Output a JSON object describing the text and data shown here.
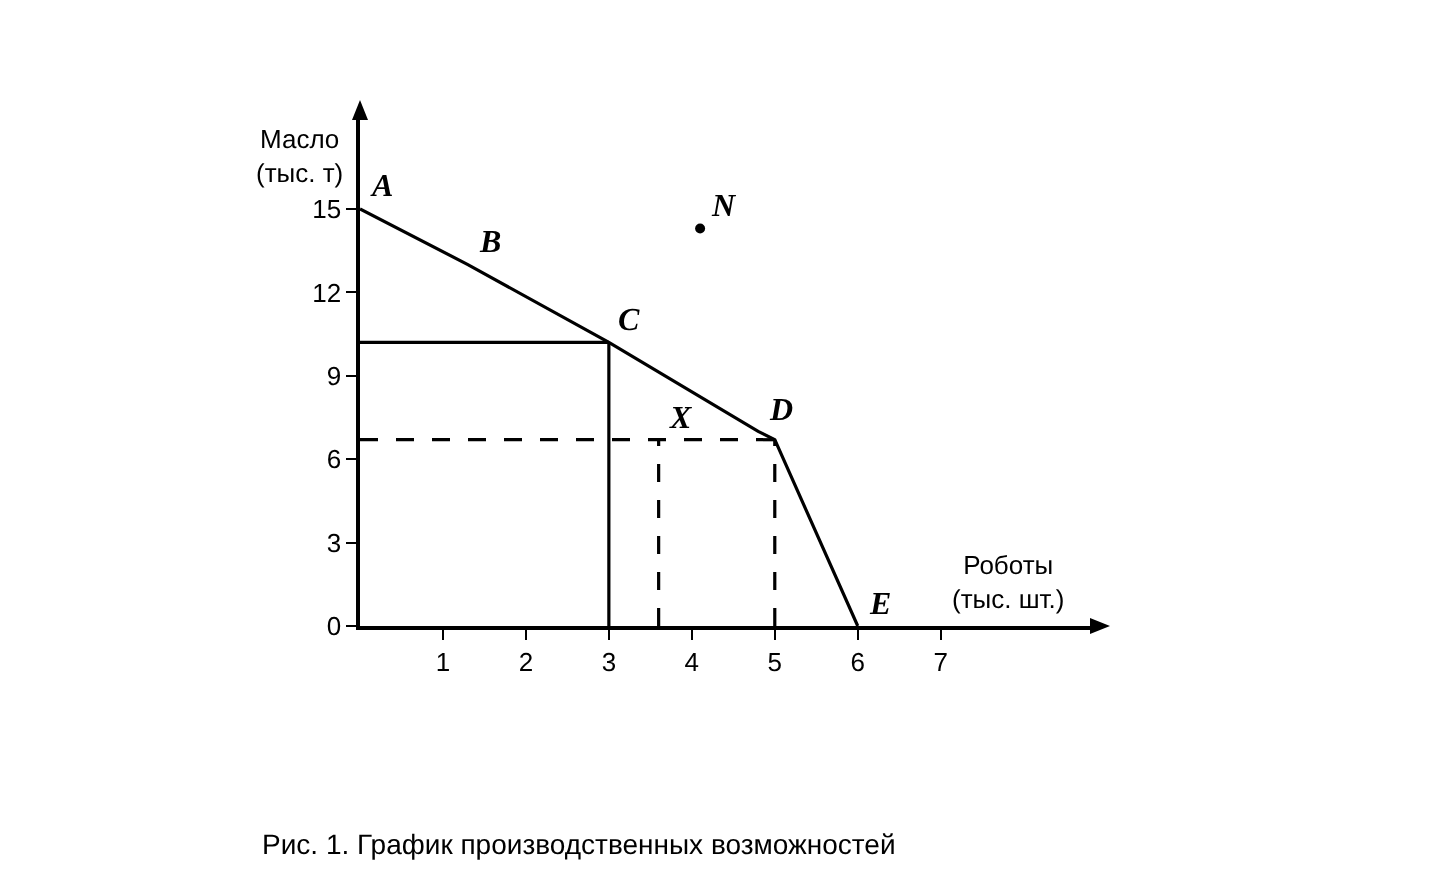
{
  "chart_data": {
    "type": "line",
    "xlabel": "Роботы\n(тыс. шт.)",
    "ylabel": "Масло\n(тыс. т)",
    "xlim": [
      0,
      8.8
    ],
    "ylim": [
      0,
      18.2
    ],
    "xticks": [
      1,
      2,
      3,
      4,
      5,
      6,
      7
    ],
    "yticks": [
      0,
      3,
      6,
      9,
      12,
      15
    ],
    "grid": false,
    "series": [
      {
        "color": "#000000",
        "x": [
          0,
          1.3,
          3,
          4.8,
          5,
          6
        ],
        "values": [
          15,
          13,
          10.2,
          7,
          6.7,
          0
        ],
        "line_style": "solid"
      },
      {
        "color": "#000000",
        "x": [
          0,
          3
        ],
        "values": [
          10.2,
          10.2
        ],
        "line_style": "solid"
      },
      {
        "color": "#000000",
        "x": [
          3,
          3
        ],
        "values": [
          0,
          10.2
        ],
        "line_style": "solid"
      },
      {
        "color": "#000000",
        "x": [
          3.6,
          3.6
        ],
        "values": [
          0,
          6.7
        ],
        "line_style": "dashed"
      },
      {
        "color": "#000000",
        "x": [
          0,
          5
        ],
        "values": [
          6.7,
          6.7
        ],
        "line_style": "dashed"
      },
      {
        "color": "#000000",
        "x": [
          5,
          5
        ],
        "values": [
          0,
          6.7
        ],
        "line_style": "dashed"
      },
      {
        "type": "scatter",
        "color": "#000000",
        "x": [
          4.1
        ],
        "values": [
          14.3
        ],
        "marker": "circle"
      }
    ],
    "annotations": [
      {
        "text": "A",
        "x": 0,
        "y": 15
      },
      {
        "text": "B",
        "x": 1.3,
        "y": 13
      },
      {
        "text": "C",
        "x": 3,
        "y": 10.2
      },
      {
        "text": "D",
        "x": 4.8,
        "y": 7
      },
      {
        "text": "E",
        "x": 6,
        "y": 0
      },
      {
        "text": "N",
        "x": 4.1,
        "y": 14.3
      },
      {
        "text": "X",
        "x": 3.6,
        "y": 6.7
      },
      "Рис. 1. График производственных возможностей"
    ]
  }
}
